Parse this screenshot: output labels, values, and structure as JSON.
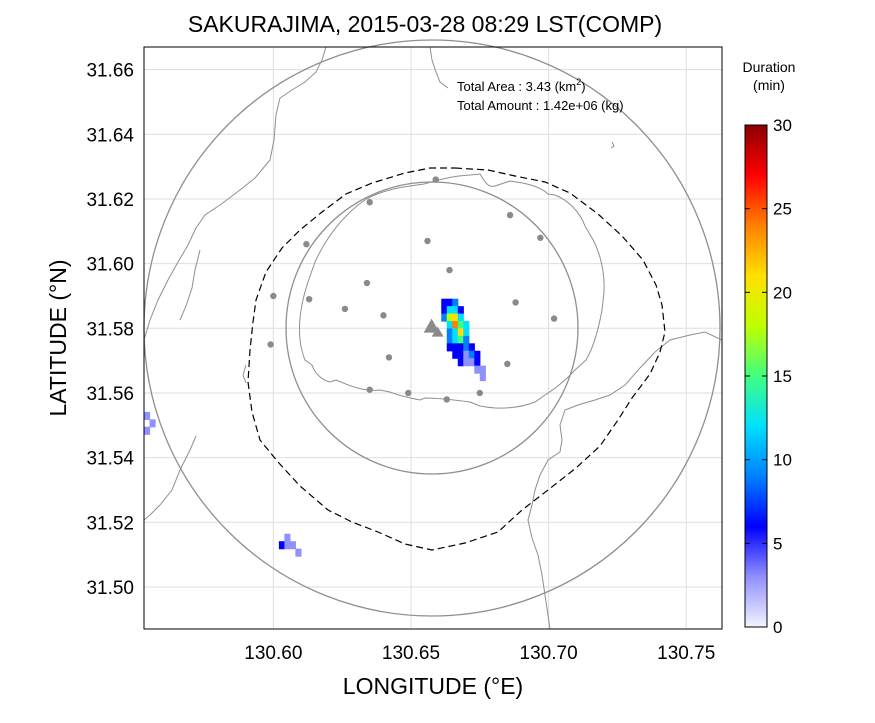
{
  "chart_data": {
    "type": "heatmap",
    "title": "SAKURAJIMA, 2015-03-28 08:29 LST(COMP)",
    "xlabel": "LONGITUDE (°E)",
    "ylabel": "LATITUDE (°N)",
    "xlim": [
      130.553,
      130.763
    ],
    "ylim": [
      31.487,
      31.667
    ],
    "x_ticks": [
      "130.60",
      "130.65",
      "130.70",
      "130.75"
    ],
    "y_ticks": [
      "31.50",
      "31.52",
      "31.54",
      "31.56",
      "31.58",
      "31.60",
      "31.62",
      "31.64",
      "31.66"
    ],
    "grid": true,
    "info": {
      "area_label": "Total Area   : 3.43 (km",
      "area_sup": "2",
      "area_close": ")",
      "amount_label": "Total Amount : 1.42e+06 (kg)"
    },
    "colorbar": {
      "title_line1": "Duration",
      "title_line2": "(min)",
      "min": 0,
      "max": 30,
      "tick_labels": [
        "0",
        "5",
        "10",
        "15",
        "20",
        "25",
        "30"
      ],
      "colors": [
        "#f3f3ff",
        "#9090ff",
        "#0000ff",
        "#0080ff",
        "#00e0ff",
        "#40ff80",
        "#c0ff00",
        "#ffe000",
        "#ff8000",
        "#ff0000",
        "#8b0000"
      ]
    },
    "volcano": {
      "lon": 130.6575,
      "lat": 31.5805,
      "marker": "triangle",
      "color": "#8a8a8a"
    },
    "stations": [
      [
        130.659,
        31.626
      ],
      [
        130.635,
        31.619
      ],
      [
        130.686,
        31.615
      ],
      [
        130.612,
        31.606
      ],
      [
        130.656,
        31.607
      ],
      [
        130.697,
        31.608
      ],
      [
        130.664,
        31.598
      ],
      [
        130.634,
        31.594
      ],
      [
        130.6,
        31.59
      ],
      [
        130.613,
        31.589
      ],
      [
        130.688,
        31.588
      ],
      [
        130.626,
        31.586
      ],
      [
        130.64,
        31.584
      ],
      [
        130.702,
        31.583
      ],
      [
        130.599,
        31.575
      ],
      [
        130.642,
        31.571
      ],
      [
        130.685,
        31.569
      ],
      [
        130.635,
        31.561
      ],
      [
        130.649,
        31.56
      ],
      [
        130.675,
        31.56
      ],
      [
        130.663,
        31.558
      ]
    ],
    "range_rings": [
      {
        "center": [
          130.659,
          31.577
        ],
        "radius_km": 10,
        "style": "solid"
      },
      {
        "center": [
          130.659,
          31.577
        ],
        "radius_km": 20,
        "style": "solid"
      },
      {
        "center": [
          130.659,
          31.577
        ],
        "radius_km": 15,
        "style": "dashed",
        "shape": "irregular"
      }
    ],
    "cells": [
      [
        130.662,
        31.588,
        6
      ],
      [
        130.664,
        31.588,
        7
      ],
      [
        130.666,
        31.588,
        8
      ],
      [
        130.662,
        31.5857,
        7
      ],
      [
        130.664,
        31.5857,
        12
      ],
      [
        130.666,
        31.5857,
        11
      ],
      [
        130.668,
        31.5857,
        6
      ],
      [
        130.662,
        31.5834,
        9
      ],
      [
        130.664,
        31.5834,
        17
      ],
      [
        130.666,
        31.5834,
        21
      ],
      [
        130.668,
        31.5834,
        13
      ],
      [
        130.664,
        31.5811,
        13
      ],
      [
        130.666,
        31.5811,
        23
      ],
      [
        130.668,
        31.5811,
        16
      ],
      [
        130.67,
        31.5811,
        11
      ],
      [
        130.664,
        31.5788,
        10
      ],
      [
        130.666,
        31.5788,
        13
      ],
      [
        130.668,
        31.5788,
        20
      ],
      [
        130.67,
        31.5788,
        12
      ],
      [
        130.664,
        31.5765,
        9
      ],
      [
        130.666,
        31.5765,
        11
      ],
      [
        130.668,
        31.5765,
        14
      ],
      [
        130.67,
        31.5765,
        10
      ],
      [
        130.664,
        31.5742,
        7
      ],
      [
        130.666,
        31.5742,
        6
      ],
      [
        130.668,
        31.5742,
        5
      ],
      [
        130.67,
        31.5742,
        9
      ],
      [
        130.672,
        31.5742,
        7
      ],
      [
        130.666,
        31.5719,
        6
      ],
      [
        130.668,
        31.5719,
        7
      ],
      [
        130.67,
        31.5719,
        4
      ],
      [
        130.672,
        31.5719,
        8
      ],
      [
        130.674,
        31.5719,
        7
      ],
      [
        130.668,
        31.5696,
        5
      ],
      [
        130.67,
        31.5696,
        4
      ],
      [
        130.672,
        31.5696,
        3
      ],
      [
        130.674,
        31.5696,
        5
      ],
      [
        130.674,
        31.5673,
        4
      ],
      [
        130.676,
        31.5673,
        3
      ],
      [
        130.676,
        31.565,
        3
      ],
      [
        130.554,
        31.553,
        3
      ],
      [
        130.556,
        31.5507,
        3
      ],
      [
        130.554,
        31.5484,
        3
      ],
      [
        130.605,
        31.5153,
        3
      ],
      [
        130.603,
        31.513,
        5
      ],
      [
        130.605,
        31.513,
        4
      ],
      [
        130.607,
        31.513,
        3
      ],
      [
        130.609,
        31.5107,
        3
      ]
    ]
  }
}
